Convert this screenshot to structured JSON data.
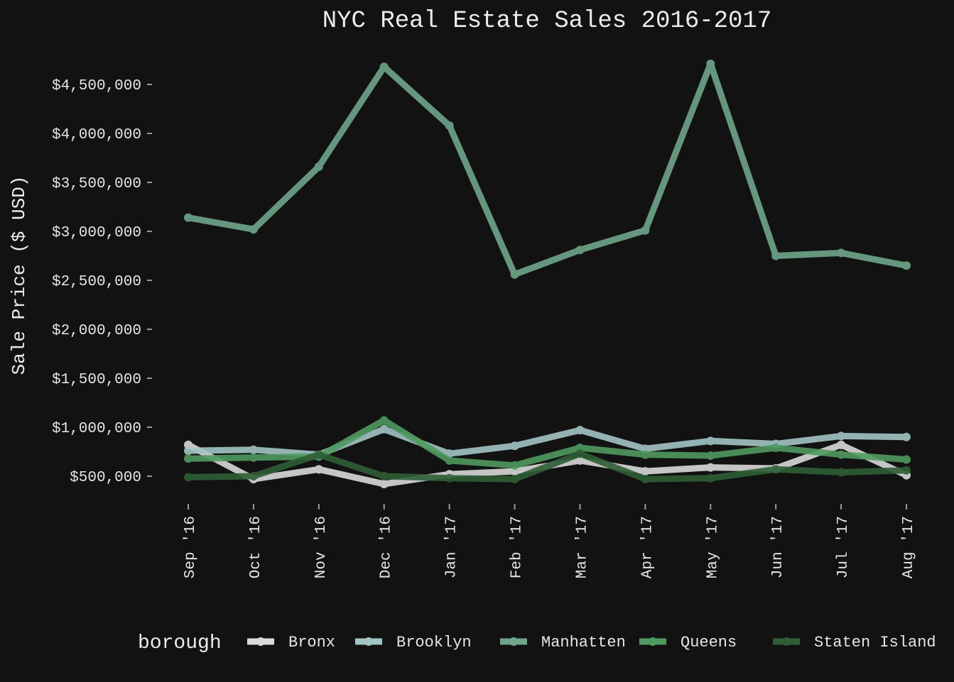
{
  "chart_data": {
    "type": "line",
    "title": "NYC Real Estate Sales 2016-2017",
    "xlabel": "",
    "ylabel": "Sale Price ($ USD)",
    "categories": [
      "Sep '16",
      "Oct '16",
      "Nov '16",
      "Dec '16",
      "Jan '17",
      "Feb '17",
      "Mar '17",
      "Apr '17",
      "May '17",
      "Jun '17",
      "Jul '17",
      "Aug '17"
    ],
    "y_ticks": [
      {
        "value": 500000,
        "label": "$500,000"
      },
      {
        "value": 1000000,
        "label": "$1,000,000"
      },
      {
        "value": 1500000,
        "label": "$1,500,000"
      },
      {
        "value": 2000000,
        "label": "$2,000,000"
      },
      {
        "value": 2500000,
        "label": "$2,500,000"
      },
      {
        "value": 3000000,
        "label": "$3,000,000"
      },
      {
        "value": 3500000,
        "label": "$3,500,000"
      },
      {
        "value": 4000000,
        "label": "$4,000,000"
      },
      {
        "value": 4500000,
        "label": "$4,500,000"
      }
    ],
    "ylim": [
      250000,
      4800000
    ],
    "grid": false,
    "legend": {
      "title": "borough",
      "position": "bottom"
    },
    "series": [
      {
        "name": "Bronx",
        "color": "#d9d9d9",
        "values": [
          820000,
          470000,
          570000,
          420000,
          520000,
          550000,
          660000,
          550000,
          590000,
          580000,
          820000,
          510000
        ]
      },
      {
        "name": "Brooklyn",
        "color": "#a3c4c4",
        "values": [
          760000,
          770000,
          720000,
          980000,
          730000,
          810000,
          970000,
          780000,
          860000,
          830000,
          910000,
          900000
        ]
      },
      {
        "name": "Manhatten",
        "color": "#6fa58a",
        "values": [
          3140000,
          3020000,
          3660000,
          4680000,
          4080000,
          2560000,
          2810000,
          3010000,
          4710000,
          2750000,
          2780000,
          2650000
        ]
      },
      {
        "name": "Queens",
        "color": "#4f9a60",
        "values": [
          680000,
          690000,
          700000,
          1070000,
          660000,
          610000,
          790000,
          720000,
          710000,
          790000,
          720000,
          670000
        ]
      },
      {
        "name": "Staten Island",
        "color": "#2e5e36",
        "values": [
          490000,
          500000,
          720000,
          500000,
          480000,
          470000,
          730000,
          470000,
          480000,
          570000,
          540000,
          560000
        ]
      }
    ]
  }
}
